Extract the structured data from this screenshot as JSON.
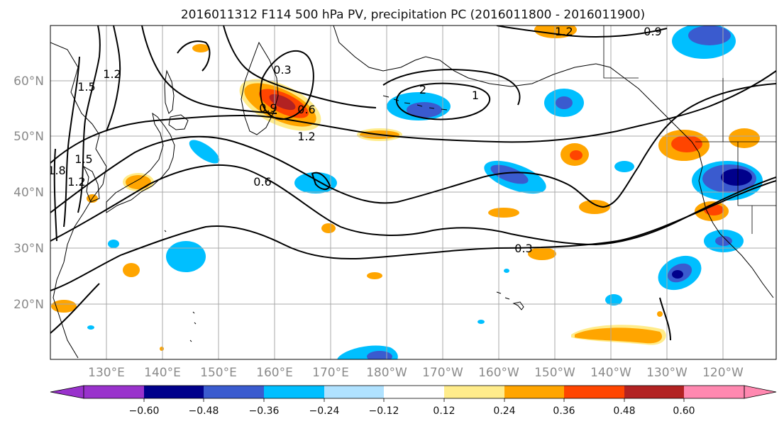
{
  "figure": {
    "title": "2016011312 F114 500 hPa PV, precipitation PC (2016011800 - 2016011900)"
  },
  "map": {
    "lat_labels": [
      "60°N",
      "50°N",
      "40°N",
      "30°N",
      "20°N"
    ],
    "lon_labels": [
      "130°E",
      "140°E",
      "150°E",
      "160°E",
      "170°E",
      "180°W",
      "170°W",
      "160°W",
      "150°W",
      "140°W",
      "130°W",
      "120°W"
    ],
    "gridlines": true,
    "contour_labels": [
      "1.2",
      "0.9",
      "0.9",
      "0.6",
      "1.2",
      "0.6",
      "0.3",
      "0.3",
      "1.5",
      "1.2",
      "1.5",
      "1.8",
      "1.2",
      "2",
      "1"
    ]
  },
  "colorbar": {
    "ticks": [
      "−0.60",
      "−0.48",
      "−0.36",
      "−0.24",
      "−0.12",
      "0.12",
      "0.24",
      "0.36",
      "0.48",
      "0.60"
    ],
    "colors": [
      "#9932cc",
      "#00008b",
      "#3a5bcf",
      "#00bfff",
      "#b0e2ff",
      "#ffffff",
      "#ffec8b",
      "#ffa500",
      "#ff4500",
      "#b22222",
      "#ff88b0"
    ],
    "extend": "both"
  }
}
